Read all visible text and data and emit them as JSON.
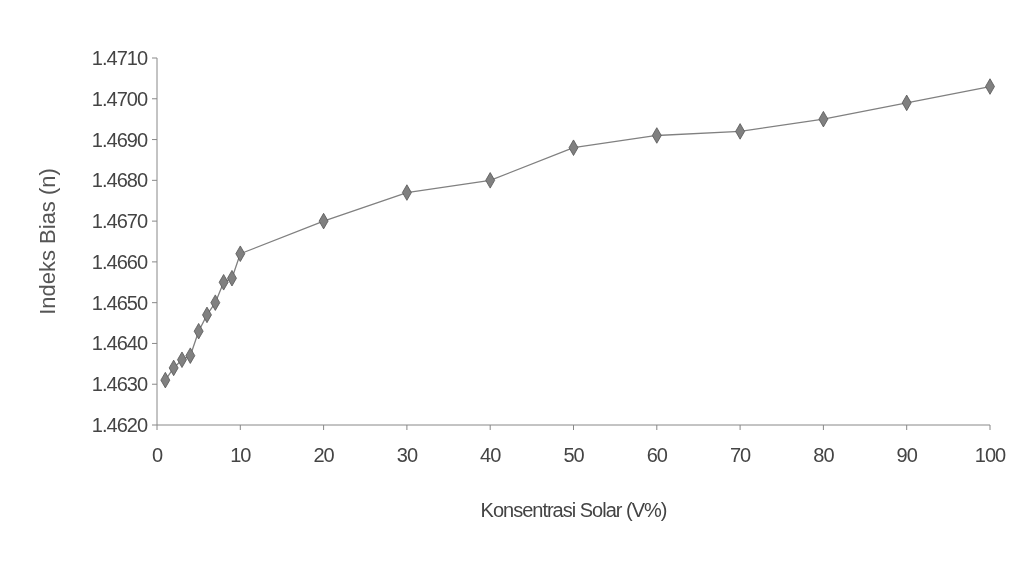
{
  "chart_data": {
    "type": "line",
    "xlabel": "Konsentrasi Solar (V%)",
    "ylabel": "Indeks Bias (n)",
    "x": [
      1,
      2,
      3,
      4,
      5,
      6,
      7,
      8,
      9,
      10,
      20,
      30,
      40,
      50,
      60,
      70,
      80,
      90,
      100
    ],
    "series": [
      {
        "color": "#808080",
        "values": [
          1.4631,
          1.4634,
          1.4636,
          1.4637,
          1.4643,
          1.4647,
          1.465,
          1.4655,
          1.4656,
          1.4662,
          1.467,
          1.4677,
          1.468,
          1.4688,
          1.4691,
          1.4692,
          1.4695,
          1.4699,
          1.4703
        ]
      }
    ],
    "xlim": [
      0,
      100
    ],
    "xticks": [
      0,
      10,
      20,
      30,
      40,
      50,
      60,
      70,
      80,
      90,
      100
    ],
    "ylim": [
      1.462,
      1.471
    ],
    "yticks": [
      {
        "value": 1.462,
        "label": "1.4620"
      },
      {
        "value": 1.463,
        "label": "1.4630"
      },
      {
        "value": 1.464,
        "label": "1.4640"
      },
      {
        "value": 1.465,
        "label": "1.4650"
      },
      {
        "value": 1.466,
        "label": "1.4660"
      },
      {
        "value": 1.467,
        "label": "1.4670"
      },
      {
        "value": 1.468,
        "label": "1.4680"
      },
      {
        "value": 1.469,
        "label": "1.4690"
      },
      {
        "value": 1.47,
        "label": "1.4700"
      },
      {
        "value": 1.471,
        "label": "1.4710"
      }
    ],
    "marker": "diamond",
    "line_style": "solid",
    "grid": false
  }
}
